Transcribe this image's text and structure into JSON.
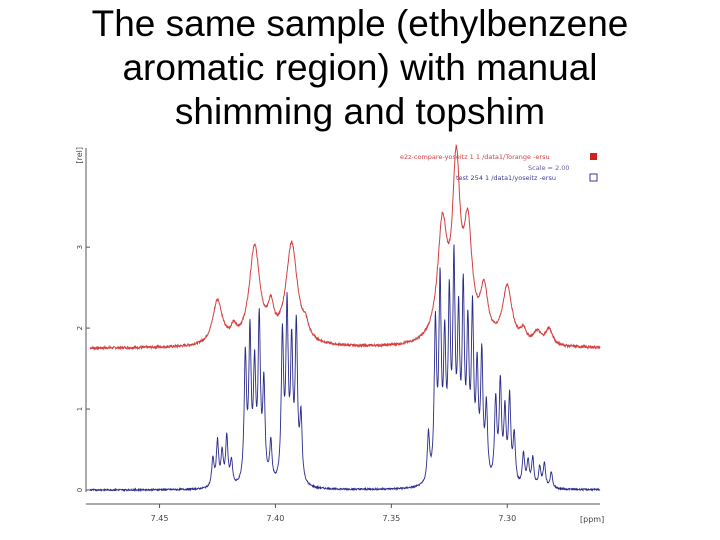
{
  "slide": {
    "title_lines": [
      "The same sample (ethylbenzene",
      "aromatic region) with manual",
      "shimming and topshim"
    ]
  },
  "chart_data": {
    "type": "line",
    "title": "",
    "xlabel": "[ppm]",
    "ylabel": "[rel]",
    "xlim": [
      7.48,
      7.26
    ],
    "ylim": [
      0,
      4.2
    ],
    "x_ticks": [
      "7.45",
      "7.40",
      "7.35",
      "7.30"
    ],
    "y_ticks": [
      "0",
      "1",
      "2",
      "3"
    ],
    "legend": {
      "placement": "top-right",
      "entries": [
        {
          "text": "e2z-compare-yoseitz 1 1 /data1/Torange -ersu",
          "color": "#d44040"
        },
        {
          "text": "Scale = 2.00",
          "color": "#6060a0"
        },
        {
          "text": "test 254 1 /data1/yoseitz -ersu",
          "color": "#3a3a9a"
        }
      ]
    },
    "series": [
      {
        "color": "#d44040",
        "offset": 1.75,
        "peaks": [
          {
            "x": 7.425,
            "h": 0.55,
            "w": 0.0025
          },
          {
            "x": 7.418,
            "h": 0.15,
            "w": 0.0015
          },
          {
            "x": 7.409,
            "h": 1.2,
            "w": 0.0028
          },
          {
            "x": 7.402,
            "h": 0.35,
            "w": 0.0015
          },
          {
            "x": 7.393,
            "h": 1.25,
            "w": 0.003
          },
          {
            "x": 7.387,
            "h": 0.15,
            "w": 0.0015
          },
          {
            "x": 7.328,
            "h": 1.4,
            "w": 0.0025
          },
          {
            "x": 7.322,
            "h": 2.05,
            "w": 0.002
          },
          {
            "x": 7.317,
            "h": 1.3,
            "w": 0.0022
          },
          {
            "x": 7.31,
            "h": 0.6,
            "w": 0.002
          },
          {
            "x": 7.3,
            "h": 0.7,
            "w": 0.0025
          },
          {
            "x": 7.293,
            "h": 0.15,
            "w": 0.0015
          },
          {
            "x": 7.287,
            "h": 0.15,
            "w": 0.002
          },
          {
            "x": 7.282,
            "h": 0.2,
            "w": 0.0018
          }
        ]
      },
      {
        "color": "#2a2a8a",
        "offset": 0,
        "peaks": [
          {
            "x": 7.427,
            "h": 0.35,
            "w": 0.0006
          },
          {
            "x": 7.425,
            "h": 0.55,
            "w": 0.0006
          },
          {
            "x": 7.423,
            "h": 0.4,
            "w": 0.0006
          },
          {
            "x": 7.421,
            "h": 0.6,
            "w": 0.0006
          },
          {
            "x": 7.419,
            "h": 0.3,
            "w": 0.0006
          },
          {
            "x": 7.413,
            "h": 1.55,
            "w": 0.0006
          },
          {
            "x": 7.411,
            "h": 1.8,
            "w": 0.0006
          },
          {
            "x": 7.409,
            "h": 1.35,
            "w": 0.0006
          },
          {
            "x": 7.407,
            "h": 1.95,
            "w": 0.0006
          },
          {
            "x": 7.405,
            "h": 1.2,
            "w": 0.0006
          },
          {
            "x": 7.402,
            "h": 0.5,
            "w": 0.0006
          },
          {
            "x": 7.397,
            "h": 1.8,
            "w": 0.0006
          },
          {
            "x": 7.395,
            "h": 2.1,
            "w": 0.0006
          },
          {
            "x": 7.393,
            "h": 1.6,
            "w": 0.0006
          },
          {
            "x": 7.391,
            "h": 1.9,
            "w": 0.0006
          },
          {
            "x": 7.389,
            "h": 0.8,
            "w": 0.0006
          },
          {
            "x": 7.334,
            "h": 0.6,
            "w": 0.0006
          },
          {
            "x": 7.331,
            "h": 1.9,
            "w": 0.0006
          },
          {
            "x": 7.329,
            "h": 2.35,
            "w": 0.0006
          },
          {
            "x": 7.327,
            "h": 1.6,
            "w": 0.0006
          },
          {
            "x": 7.325,
            "h": 2.1,
            "w": 0.0006
          },
          {
            "x": 7.323,
            "h": 2.55,
            "w": 0.0006
          },
          {
            "x": 7.321,
            "h": 1.85,
            "w": 0.0006
          },
          {
            "x": 7.319,
            "h": 2.2,
            "w": 0.0006
          },
          {
            "x": 7.317,
            "h": 1.75,
            "w": 0.0006
          },
          {
            "x": 7.315,
            "h": 2.0,
            "w": 0.0006
          },
          {
            "x": 7.313,
            "h": 1.3,
            "w": 0.0006
          },
          {
            "x": 7.311,
            "h": 1.5,
            "w": 0.0006
          },
          {
            "x": 7.309,
            "h": 0.9,
            "w": 0.0006
          },
          {
            "x": 7.305,
            "h": 1.0,
            "w": 0.0006
          },
          {
            "x": 7.303,
            "h": 1.2,
            "w": 0.0006
          },
          {
            "x": 7.301,
            "h": 0.85,
            "w": 0.0006
          },
          {
            "x": 7.299,
            "h": 1.05,
            "w": 0.0006
          },
          {
            "x": 7.297,
            "h": 0.6,
            "w": 0.0006
          },
          {
            "x": 7.293,
            "h": 0.4,
            "w": 0.0006
          },
          {
            "x": 7.291,
            "h": 0.3,
            "w": 0.0006
          },
          {
            "x": 7.289,
            "h": 0.35,
            "w": 0.0006
          },
          {
            "x": 7.286,
            "h": 0.25,
            "w": 0.0006
          },
          {
            "x": 7.284,
            "h": 0.3,
            "w": 0.0006
          },
          {
            "x": 7.281,
            "h": 0.2,
            "w": 0.0006
          }
        ]
      }
    ]
  }
}
